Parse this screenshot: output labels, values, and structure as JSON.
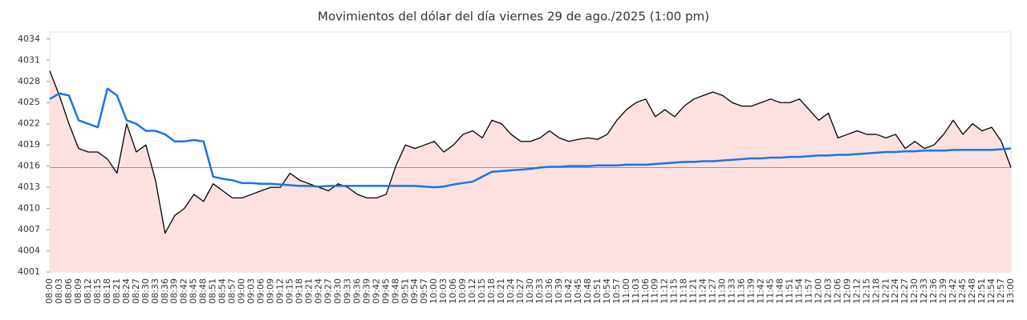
{
  "chart_data": {
    "type": "line",
    "title": "Movimientos del dólar del día viernes 29 de ago./2025 (1:00 pm)",
    "categories": [
      "08:00",
      "08:03",
      "08:06",
      "08:09",
      "08:12",
      "08:15",
      "08:18",
      "08:21",
      "08:24",
      "08:27",
      "08:30",
      "08:33",
      "08:36",
      "08:39",
      "08:42",
      "08:45",
      "08:48",
      "08:51",
      "08:54",
      "08:57",
      "09:00",
      "09:03",
      "09:06",
      "09:09",
      "09:12",
      "09:15",
      "09:18",
      "09:21",
      "09:24",
      "09:27",
      "09:30",
      "09:33",
      "09:36",
      "09:39",
      "09:42",
      "09:45",
      "09:48",
      "09:51",
      "09:54",
      "09:57",
      "10:00",
      "10:03",
      "10:06",
      "10:09",
      "10:12",
      "10:15",
      "10:18",
      "10:21",
      "10:24",
      "10:27",
      "10:30",
      "10:33",
      "10:36",
      "10:39",
      "10:42",
      "10:45",
      "10:48",
      "10:51",
      "10:54",
      "10:57",
      "11:00",
      "11:03",
      "11:06",
      "11:09",
      "11:12",
      "11:15",
      "11:18",
      "11:21",
      "11:24",
      "11:27",
      "11:30",
      "11:33",
      "11:36",
      "11:39",
      "11:42",
      "11:45",
      "11:48",
      "11:51",
      "11:54",
      "11:57",
      "12:00",
      "12:03",
      "12:06",
      "12:09",
      "12:12",
      "12:15",
      "12:18",
      "12:21",
      "12:24",
      "12:27",
      "12:30",
      "12:33",
      "12:36",
      "12:39",
      "12:42",
      "12:45",
      "12:48",
      "12:51",
      "12:54",
      "12:57",
      "13:00"
    ],
    "series": [
      {
        "color": "#000000",
        "fill": "#fde1e1",
        "values": [
          4029.5,
          4026,
          4022,
          4018.5,
          4018,
          4018,
          4017,
          4015,
          4022,
          4018,
          4019,
          4014,
          4006.5,
          4009,
          4010,
          4012,
          4011,
          4013.5,
          4012.5,
          4011.5,
          4011.5,
          4012,
          4012.5,
          4013,
          4013,
          4015,
          4014,
          4013.5,
          4013,
          4012.5,
          4013.5,
          4013,
          4012,
          4011.5,
          4011.5,
          4012,
          4016,
          4019,
          4018.5,
          4019,
          4019.5,
          4018,
          4019,
          4020.5,
          4021,
          4020,
          4022.5,
          4022,
          4020.5,
          4019.5,
          4019.5,
          4020,
          4021,
          4020,
          4019.5,
          4019.8,
          4020,
          4019.8,
          4020.5,
          4022.5,
          4024,
          4025,
          4025.5,
          4023,
          4024,
          4023,
          4024.5,
          4025.5,
          4026,
          4026.5,
          4026,
          4025,
          4024.5,
          4024.5,
          4025,
          4025.5,
          4025,
          4025,
          4025.5,
          4024,
          4022.5,
          4023.5,
          4020,
          4020.5,
          4021,
          4020.5,
          4020.5,
          4020,
          4020.5,
          4018.5,
          4019.5,
          4018.5,
          4019,
          4020.5,
          4022.5,
          4020.5,
          4022,
          4021,
          4021.5,
          4019.5,
          4015.8
        ]
      },
      {
        "color": "#1a73e8",
        "values": [
          4025.5,
          4026.3,
          4026,
          4022.5,
          4022,
          4021.5,
          4027,
          4026,
          4022.5,
          4022,
          4021,
          4021,
          4020.5,
          4019.5,
          4019.5,
          4019.7,
          4019.5,
          4014.5,
          4014.2,
          4014,
          4013.6,
          4013.6,
          4013.5,
          4013.5,
          4013.4,
          4013.3,
          4013.2,
          4013.2,
          4013.1,
          4013.2,
          4013.2,
          4013.2,
          4013.2,
          4013.2,
          4013.2,
          4013.2,
          4013.2,
          4013.2,
          4013.2,
          4013.1,
          4013,
          4013.1,
          4013.4,
          4013.6,
          4013.8,
          4014.5,
          4015.2,
          4015.3,
          4015.4,
          4015.5,
          4015.6,
          4015.8,
          4015.9,
          4015.9,
          4016,
          4016,
          4016,
          4016.1,
          4016.1,
          4016.1,
          4016.2,
          4016.2,
          4016.2,
          4016.3,
          4016.4,
          4016.5,
          4016.6,
          4016.6,
          4016.7,
          4016.7,
          4016.8,
          4016.9,
          4017,
          4017.1,
          4017.1,
          4017.2,
          4017.2,
          4017.3,
          4017.3,
          4017.4,
          4017.5,
          4017.5,
          4017.6,
          4017.6,
          4017.7,
          4017.8,
          4017.9,
          4018,
          4018,
          4018.1,
          4018.1,
          4018.2,
          4018.2,
          4018.2,
          4018.3,
          4018.3,
          4018.3,
          4018.3,
          4018.3,
          4018.4,
          4018.5
        ]
      }
    ],
    "reference_line": 4015.8,
    "ylim": [
      4001,
      4035
    ],
    "yticks": [
      4001,
      4004,
      4007,
      4010,
      4013,
      4016,
      4019,
      4022,
      4025,
      4028,
      4031,
      4034
    ]
  }
}
